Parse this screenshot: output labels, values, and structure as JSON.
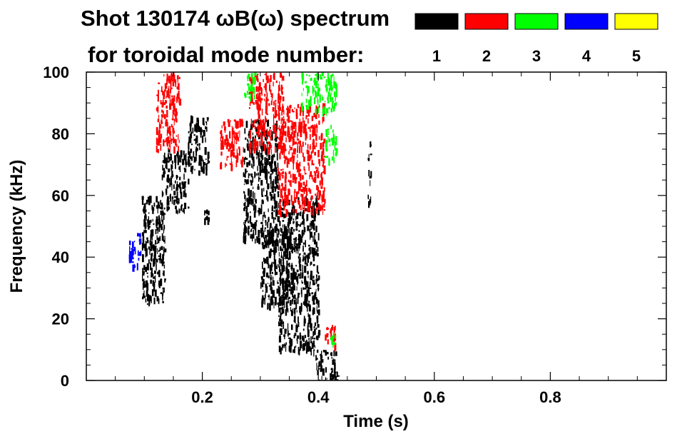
{
  "chart_data": {
    "type": "heatmap",
    "title_line1": "Shot 130174 ωB(ω) spectrum",
    "title_line2": "for toroidal mode number:",
    "xlabel": "Time (s)",
    "ylabel": "Frequency (kHz)",
    "xlim": [
      0.0,
      1.0
    ],
    "ylim": [
      0,
      100
    ],
    "x_ticks": [
      0.2,
      0.4,
      0.6,
      0.8
    ],
    "x_tick_labels": [
      "0.2",
      "0.4",
      "0.6",
      "0.8"
    ],
    "y_ticks": [
      0,
      20,
      40,
      60,
      80,
      100
    ],
    "y_tick_labels": [
      "0",
      "20",
      "40",
      "60",
      "80",
      "100"
    ],
    "grid": false,
    "legend_position": "top-right",
    "legend": [
      {
        "label": "1",
        "color": "#000000"
      },
      {
        "label": "2",
        "color": "#ff0000"
      },
      {
        "label": "3",
        "color": "#00ff00"
      },
      {
        "label": "4",
        "color": "#0000ff"
      },
      {
        "label": "5",
        "color": "#ffff00"
      }
    ],
    "series": [
      {
        "name": "1",
        "color": "#000000",
        "regions": [
          {
            "t": [
              0.095,
              0.135
            ],
            "f": [
              25,
              60
            ]
          },
          {
            "t": [
              0.13,
              0.175
            ],
            "f": [
              55,
              75
            ]
          },
          {
            "t": [
              0.175,
              0.21
            ],
            "f": [
              68,
              86
            ]
          },
          {
            "t": [
              0.2,
              0.21
            ],
            "f": [
              52,
              58
            ]
          },
          {
            "t": [
              0.27,
              0.33
            ],
            "f": [
              45,
              85
            ]
          },
          {
            "t": [
              0.3,
              0.36
            ],
            "f": [
              25,
              50
            ]
          },
          {
            "t": [
              0.33,
              0.4
            ],
            "f": [
              10,
              60
            ]
          },
          {
            "t": [
              0.395,
              0.435
            ],
            "f": [
              0,
              10
            ]
          },
          {
            "t": [
              0.485,
              0.49
            ],
            "f": [
              58,
              78
            ]
          }
        ]
      },
      {
        "name": "2",
        "color": "#ff0000",
        "regions": [
          {
            "t": [
              0.12,
              0.16
            ],
            "f": [
              75,
              100
            ]
          },
          {
            "t": [
              0.23,
              0.27
            ],
            "f": [
              70,
              85
            ]
          },
          {
            "t": [
              0.28,
              0.34
            ],
            "f": [
              75,
              100
            ]
          },
          {
            "t": [
              0.33,
              0.41
            ],
            "f": [
              55,
              90
            ]
          },
          {
            "t": [
              0.41,
              0.43
            ],
            "f": [
              12,
              18
            ]
          }
        ]
      },
      {
        "name": "3",
        "color": "#00ff00",
        "regions": [
          {
            "t": [
              0.27,
              0.29
            ],
            "f": [
              92,
              100
            ]
          },
          {
            "t": [
              0.37,
              0.43
            ],
            "f": [
              88,
              100
            ]
          },
          {
            "t": [
              0.41,
              0.43
            ],
            "f": [
              72,
              83
            ]
          },
          {
            "t": [
              0.42,
              0.43
            ],
            "f": [
              12,
              16
            ]
          }
        ]
      },
      {
        "name": "4",
        "color": "#0000ff",
        "regions": [
          {
            "t": [
              0.073,
              0.093
            ],
            "f": [
              37,
              48
            ]
          }
        ]
      },
      {
        "name": "5",
        "color": "#ffff00",
        "regions": []
      }
    ]
  }
}
